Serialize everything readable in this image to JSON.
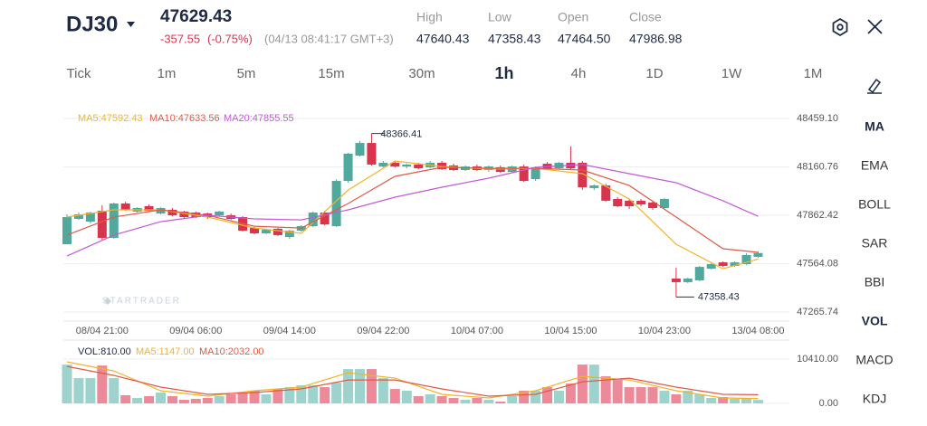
{
  "header": {
    "symbol": "DJ30",
    "price": "47629.43",
    "change": "-357.55",
    "change_pct": "(-0.75%)",
    "time": "(04/13 08:41:17 GMT+3)",
    "stats": [
      {
        "label": "High",
        "value": "47640.43"
      },
      {
        "label": "Low",
        "value": "47358.43"
      },
      {
        "label": "Open",
        "value": "47464.50"
      },
      {
        "label": "Close",
        "value": "47986.98"
      }
    ]
  },
  "timeframes": [
    {
      "label": "Tick",
      "active": false
    },
    {
      "label": "1m",
      "active": false
    },
    {
      "label": "5m",
      "active": false
    },
    {
      "label": "15m",
      "active": false
    },
    {
      "label": "30m",
      "active": false
    },
    {
      "label": "1h",
      "active": true
    },
    {
      "label": "4h",
      "active": false
    },
    {
      "label": "1D",
      "active": false
    },
    {
      "label": "1W",
      "active": false
    },
    {
      "label": "1M",
      "active": false
    }
  ],
  "indicators": [
    {
      "label": "MA",
      "active": true
    },
    {
      "label": "EMA",
      "active": false
    },
    {
      "label": "BOLL",
      "active": false
    },
    {
      "label": "SAR",
      "active": false
    },
    {
      "label": "BBI",
      "active": false
    },
    {
      "label": "VOL",
      "active": true
    },
    {
      "label": "MACD",
      "active": false
    },
    {
      "label": "KDJ",
      "active": false
    }
  ],
  "watermark": "STARTRADER",
  "chart_data": {
    "type": "candlestick",
    "x": [
      null,
      null,
      null,
      "08/04 21:00",
      null,
      null,
      null,
      null,
      null,
      null,
      null,
      "09/04 06:00",
      null,
      null,
      null,
      null,
      null,
      null,
      null,
      "09/04 14:00",
      null,
      null,
      null,
      null,
      null,
      null,
      null,
      "09/04 22:00",
      null,
      null,
      null,
      null,
      null,
      null,
      null,
      "10/04 07:00",
      null,
      null,
      null,
      null,
      null,
      null,
      null,
      "10/04 15:00",
      null,
      null,
      null,
      null,
      null,
      null,
      null,
      "10/04 23:00",
      null,
      null,
      null,
      null,
      null,
      null,
      null,
      "13/04 08:00"
    ],
    "candles": [
      [
        47684,
        47868,
        47684,
        47851
      ],
      [
        47840,
        47879,
        47834,
        47868
      ],
      [
        47823,
        47885,
        47812,
        47879
      ],
      [
        47890,
        47924,
        47712,
        47723
      ],
      [
        47723,
        47941,
        47717,
        47935
      ],
      [
        47935,
        47946,
        47890,
        47896
      ],
      [
        47885,
        47912,
        47879,
        47907
      ],
      [
        47918,
        47929,
        47885,
        47890
      ],
      [
        47873,
        47912,
        47868,
        47907
      ],
      [
        47896,
        47907,
        47857,
        47862
      ],
      [
        47885,
        47890,
        47846,
        47851
      ],
      [
        47879,
        47885,
        47846,
        47851
      ],
      [
        47873,
        47879,
        47840,
        47851
      ],
      [
        47862,
        47890,
        47857,
        47885
      ],
      [
        47862,
        47873,
        47834,
        47840
      ],
      [
        47851,
        47857,
        47762,
        47767
      ],
      [
        47784,
        47790,
        47745,
        47751
      ],
      [
        47751,
        47779,
        47745,
        47773
      ],
      [
        47779,
        47784,
        47734,
        47740
      ],
      [
        47728,
        47773,
        47717,
        47767
      ],
      [
        47767,
        47801,
        47762,
        47795
      ],
      [
        47795,
        47885,
        47790,
        47879
      ],
      [
        47879,
        47890,
        47801,
        47806
      ],
      [
        47795,
        48085,
        47790,
        48074
      ],
      [
        48074,
        48247,
        48063,
        48242
      ],
      [
        48230,
        48320,
        48225,
        48308
      ],
      [
        48308,
        48366.41,
        48169,
        48175
      ],
      [
        48163,
        48197,
        48158,
        48186
      ],
      [
        48186,
        48197,
        48158,
        48163
      ],
      [
        48163,
        48180,
        48152,
        48175
      ],
      [
        48175,
        48186,
        48147,
        48152
      ],
      [
        48158,
        48197,
        48152,
        48186
      ],
      [
        48186,
        48197,
        48141,
        48147
      ],
      [
        48169,
        48180,
        48136,
        48141
      ],
      [
        48141,
        48169,
        48136,
        48163
      ],
      [
        48163,
        48175,
        48136,
        48141
      ],
      [
        48141,
        48169,
        48130,
        48163
      ],
      [
        48158,
        48169,
        48124,
        48130
      ],
      [
        48130,
        48169,
        48124,
        48163
      ],
      [
        48163,
        48175,
        48068,
        48074
      ],
      [
        48085,
        48163,
        48074,
        48158
      ],
      [
        48180,
        48191,
        48141,
        48147
      ],
      [
        48152,
        48191,
        48147,
        48186
      ],
      [
        48186,
        48286,
        48141,
        48152
      ],
      [
        48186,
        48197,
        48019,
        48035
      ],
      [
        48030,
        48052,
        48019,
        48046
      ],
      [
        48046,
        48057,
        47946,
        47952
      ],
      [
        47963,
        47974,
        47912,
        47918
      ],
      [
        47952,
        47963,
        47901,
        47918
      ],
      [
        47952,
        47963,
        47918,
        47929
      ],
      [
        47941,
        47952,
        47896,
        47907
      ],
      [
        47907,
        47969,
        47901,
        47963
      ],
      [
        47472,
        47539,
        47358.43,
        47450
      ],
      [
        47450,
        47478,
        47444,
        47472
      ],
      [
        47461,
        47550,
        47456,
        47544
      ],
      [
        47533,
        47566,
        47528,
        47561
      ],
      [
        47572,
        47578,
        47544,
        47550
      ],
      [
        47550,
        47578,
        47544,
        47572
      ],
      [
        47561,
        47628,
        47556,
        47617
      ],
      [
        47606,
        47640.43,
        47600,
        47629.43
      ]
    ],
    "ylim": [
      47209.9,
      48520.4
    ],
    "yticks": [
      {
        "value": 48459.1,
        "label": "48459.10"
      },
      48160.76,
      47862.42,
      47564.08,
      47265.74
    ],
    "grid": true,
    "ma_lines": [
      {
        "label": "MA5:47592.43",
        "color": "#f0b429",
        "x": [
          0,
          4,
          8,
          12,
          16,
          20,
          24,
          28,
          32,
          36,
          40,
          44,
          48,
          52,
          56,
          59
        ],
        "values": [
          47851,
          47896,
          47896,
          47851,
          47784,
          47751,
          48018,
          48197,
          48163,
          48147,
          48152,
          48119,
          47963,
          47684,
          47533,
          47592.43
        ]
      },
      {
        "label": "MA10:47633.56",
        "color": "#e05a47",
        "x": [
          0,
          4,
          8,
          12,
          16,
          20,
          24,
          28,
          32,
          36,
          40,
          44,
          48,
          52,
          56,
          59
        ],
        "values": [
          47740,
          47851,
          47896,
          47862,
          47795,
          47784,
          47935,
          48102,
          48158,
          48152,
          48152,
          48141,
          48046,
          47851,
          47656,
          47633.56
        ]
      },
      {
        "label": "MA20:47855.55",
        "color": "#c25bd6",
        "x": [
          0,
          4,
          8,
          12,
          16,
          20,
          24,
          28,
          32,
          36,
          40,
          44,
          48,
          52,
          56,
          59
        ],
        "values": [
          47611,
          47740,
          47823,
          47862,
          47840,
          47834,
          47896,
          47974,
          48035,
          48091,
          48158,
          48175,
          48119,
          48063,
          47952,
          47855.55
        ]
      }
    ],
    "volume": {
      "label": "VOL:810.00",
      "values": [
        9116,
        5936,
        5936,
        8904,
        5936,
        1908,
        1272,
        1696,
        2544,
        1696,
        848,
        1060,
        1272,
        1696,
        2120,
        2544,
        2968,
        2120,
        3392,
        3816,
        4240,
        4240,
        3816,
        4876,
        8056,
        8056,
        8056,
        5936,
        3392,
        2968,
        1696,
        2120,
        1696,
        1272,
        848,
        1272,
        848,
        424,
        1696,
        2968,
        2968,
        3816,
        2968,
        4664,
        9116,
        9116,
        6360,
        5512,
        3816,
        3816,
        3816,
        2968,
        2120,
        2968,
        2120,
        1272,
        1484,
        1060,
        1060,
        810
      ],
      "ylim": [
        0,
        10410
      ],
      "yticks": [
        {
          "value": 10410,
          "label": "10410.00"
        },
        {
          "value": 0,
          "label": "0.00"
        }
      ],
      "ma_lines": [
        {
          "label": "MA5:1147.00",
          "color": "#f0b429",
          "x": [
            0,
            4,
            8,
            12,
            16,
            20,
            24,
            28,
            32,
            36,
            40,
            44,
            48,
            52,
            56,
            59
          ],
          "values": [
            9752,
            7632,
            2968,
            1696,
            2968,
            3816,
            7208,
            5936,
            2120,
            1272,
            2968,
            6360,
            5512,
            2968,
            1272,
            1147
          ]
        },
        {
          "label": "MA10:2032.00",
          "color": "#e05a47",
          "x": [
            0,
            4,
            8,
            12,
            16,
            20,
            24,
            28,
            32,
            36,
            40,
            44,
            48,
            52,
            56,
            59
          ],
          "values": [
            8692,
            6572,
            3816,
            2120,
            2544,
            3392,
            5512,
            5512,
            3392,
            1696,
            2120,
            5088,
            5936,
            3816,
            2120,
            2032
          ]
        }
      ]
    },
    "up_color": "#4fa99c",
    "down_color": "#d8344d",
    "vol_up_color": "#9dd3cc",
    "vol_down_color": "#ec8a9a"
  }
}
